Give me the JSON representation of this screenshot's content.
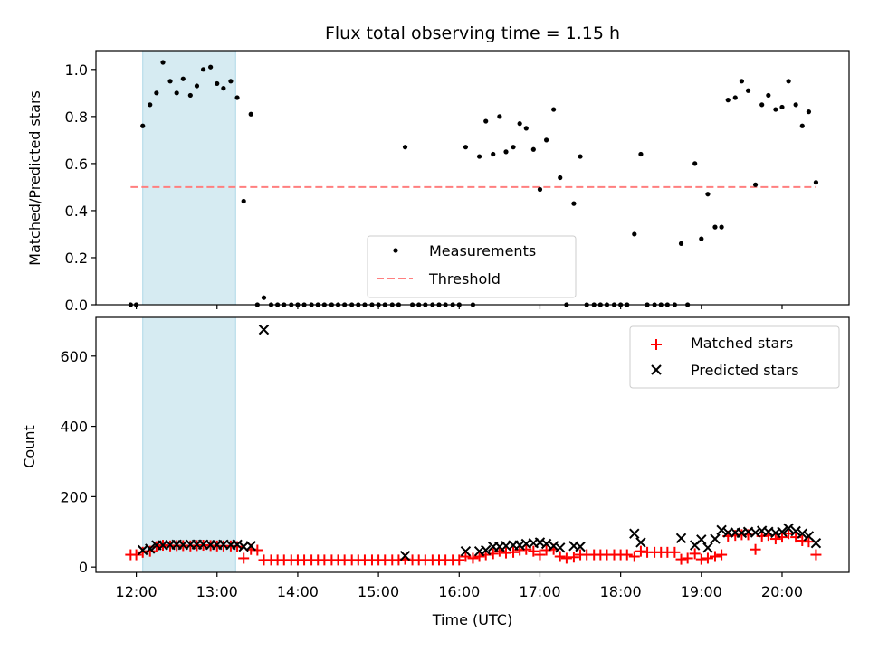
{
  "chart_data": [
    {
      "type": "scatter",
      "title": "Flux total observing time = 1.15 h",
      "ylabel": "Matched/Predicted stars",
      "xlim": [
        11.5,
        20.83
      ],
      "ylim": [
        0,
        1.08
      ],
      "yticks": [
        "0.0",
        "0.2",
        "0.4",
        "0.6",
        "0.8",
        "1.0"
      ],
      "ytick_values": [
        0,
        0.2,
        0.4,
        0.6,
        0.8,
        1.0
      ],
      "highlight_span": [
        12.08,
        13.23
      ],
      "threshold": {
        "name": "Threshold",
        "value": 0.5,
        "x_range": [
          11.93,
          20.42
        ],
        "color": "#ff7f7f"
      },
      "legend": {
        "placement": "lower-center",
        "entries": [
          "Measurements",
          "Threshold"
        ]
      },
      "series": [
        {
          "name": "Measurements",
          "color": "#000000",
          "points": [
            [
              11.93,
              0.0
            ],
            [
              12.0,
              0.0
            ],
            [
              12.08,
              0.76
            ],
            [
              12.17,
              0.85
            ],
            [
              12.25,
              0.9
            ],
            [
              12.33,
              1.03
            ],
            [
              12.42,
              0.95
            ],
            [
              12.5,
              0.9
            ],
            [
              12.58,
              0.96
            ],
            [
              12.67,
              0.89
            ],
            [
              12.75,
              0.93
            ],
            [
              12.83,
              1.0
            ],
            [
              12.92,
              1.01
            ],
            [
              13.0,
              0.94
            ],
            [
              13.08,
              0.92
            ],
            [
              13.17,
              0.95
            ],
            [
              13.25,
              0.88
            ],
            [
              13.33,
              0.44
            ],
            [
              13.42,
              0.81
            ],
            [
              13.5,
              0.0
            ],
            [
              13.58,
              0.03
            ],
            [
              13.67,
              0.0
            ],
            [
              13.75,
              0.0
            ],
            [
              13.83,
              0.0
            ],
            [
              13.92,
              0.0
            ],
            [
              14.0,
              0.0
            ],
            [
              14.08,
              0.0
            ],
            [
              14.17,
              0.0
            ],
            [
              14.25,
              0.0
            ],
            [
              14.33,
              0.0
            ],
            [
              14.42,
              0.0
            ],
            [
              14.5,
              0.0
            ],
            [
              14.58,
              0.0
            ],
            [
              14.67,
              0.0
            ],
            [
              14.75,
              0.0
            ],
            [
              14.83,
              0.0
            ],
            [
              14.92,
              0.0
            ],
            [
              15.0,
              0.0
            ],
            [
              15.08,
              0.0
            ],
            [
              15.17,
              0.0
            ],
            [
              15.25,
              0.0
            ],
            [
              15.33,
              0.67
            ],
            [
              15.42,
              0.0
            ],
            [
              15.5,
              0.0
            ],
            [
              15.58,
              0.0
            ],
            [
              15.67,
              0.0
            ],
            [
              15.75,
              0.0
            ],
            [
              15.83,
              0.0
            ],
            [
              15.92,
              0.0
            ],
            [
              16.0,
              0.0
            ],
            [
              16.08,
              0.67
            ],
            [
              16.17,
              0.0
            ],
            [
              16.25,
              0.63
            ],
            [
              16.33,
              0.78
            ],
            [
              16.42,
              0.64
            ],
            [
              16.5,
              0.8
            ],
            [
              16.58,
              0.65
            ],
            [
              16.67,
              0.67
            ],
            [
              16.75,
              0.77
            ],
            [
              16.83,
              0.75
            ],
            [
              16.92,
              0.66
            ],
            [
              17.0,
              0.49
            ],
            [
              17.08,
              0.7
            ],
            [
              17.17,
              0.83
            ],
            [
              17.25,
              0.54
            ],
            [
              17.33,
              0.0
            ],
            [
              17.42,
              0.43
            ],
            [
              17.5,
              0.63
            ],
            [
              17.58,
              0.0
            ],
            [
              17.67,
              0.0
            ],
            [
              17.75,
              0.0
            ],
            [
              17.83,
              0.0
            ],
            [
              17.92,
              0.0
            ],
            [
              18.0,
              0.0
            ],
            [
              18.08,
              0.0
            ],
            [
              18.17,
              0.3
            ],
            [
              18.25,
              0.64
            ],
            [
              18.33,
              0.0
            ],
            [
              18.42,
              0.0
            ],
            [
              18.5,
              0.0
            ],
            [
              18.58,
              0.0
            ],
            [
              18.67,
              0.0
            ],
            [
              18.75,
              0.26
            ],
            [
              18.83,
              0.0
            ],
            [
              18.92,
              0.6
            ],
            [
              19.0,
              0.28
            ],
            [
              19.08,
              0.47
            ],
            [
              19.17,
              0.33
            ],
            [
              19.25,
              0.33
            ],
            [
              19.33,
              0.87
            ],
            [
              19.42,
              0.88
            ],
            [
              19.5,
              0.95
            ],
            [
              19.58,
              0.91
            ],
            [
              19.67,
              0.51
            ],
            [
              19.75,
              0.85
            ],
            [
              19.83,
              0.89
            ],
            [
              19.92,
              0.83
            ],
            [
              20.0,
              0.84
            ],
            [
              20.08,
              0.95
            ],
            [
              20.17,
              0.85
            ],
            [
              20.25,
              0.76
            ],
            [
              20.33,
              0.82
            ],
            [
              20.42,
              0.52
            ]
          ]
        }
      ]
    },
    {
      "type": "scatter",
      "xlabel": "Time (UTC)",
      "ylabel": "Count",
      "xlim": [
        11.5,
        20.83
      ],
      "ylim": [
        -15,
        710
      ],
      "yticks": [
        "0",
        "200",
        "400",
        "600"
      ],
      "ytick_values": [
        0,
        200,
        400,
        600
      ],
      "xticks": [
        "12:00",
        "13:00",
        "14:00",
        "15:00",
        "16:00",
        "17:00",
        "18:00",
        "19:00",
        "20:00"
      ],
      "xtick_values": [
        12,
        13,
        14,
        15,
        16,
        17,
        18,
        19,
        20
      ],
      "highlight_span": [
        12.08,
        13.23
      ],
      "legend": {
        "placement": "top-right",
        "entries": [
          "Matched stars",
          "Predicted stars"
        ]
      },
      "series": [
        {
          "name": "Matched stars",
          "marker": "+",
          "color": "#ff0000",
          "points": [
            [
              11.93,
              35
            ],
            [
              12.0,
              35
            ],
            [
              12.08,
              42
            ],
            [
              12.17,
              45
            ],
            [
              12.25,
              58
            ],
            [
              12.33,
              62
            ],
            [
              12.42,
              60
            ],
            [
              12.5,
              61
            ],
            [
              12.58,
              61
            ],
            [
              12.67,
              60
            ],
            [
              12.75,
              61
            ],
            [
              12.83,
              62
            ],
            [
              12.92,
              61
            ],
            [
              13.0,
              60
            ],
            [
              13.08,
              60
            ],
            [
              13.17,
              60
            ],
            [
              13.25,
              58
            ],
            [
              13.33,
              25
            ],
            [
              13.42,
              50
            ],
            [
              13.5,
              48
            ],
            [
              13.58,
              20
            ],
            [
              13.67,
              20
            ],
            [
              13.75,
              20
            ],
            [
              13.83,
              20
            ],
            [
              13.92,
              20
            ],
            [
              14.0,
              20
            ],
            [
              14.08,
              20
            ],
            [
              14.17,
              20
            ],
            [
              14.25,
              20
            ],
            [
              14.33,
              20
            ],
            [
              14.42,
              20
            ],
            [
              14.5,
              20
            ],
            [
              14.58,
              20
            ],
            [
              14.67,
              20
            ],
            [
              14.75,
              20
            ],
            [
              14.83,
              20
            ],
            [
              14.92,
              20
            ],
            [
              15.0,
              20
            ],
            [
              15.08,
              20
            ],
            [
              15.17,
              20
            ],
            [
              15.25,
              20
            ],
            [
              15.33,
              22
            ],
            [
              15.42,
              20
            ],
            [
              15.5,
              20
            ],
            [
              15.58,
              20
            ],
            [
              15.67,
              20
            ],
            [
              15.75,
              20
            ],
            [
              15.83,
              20
            ],
            [
              15.92,
              20
            ],
            [
              16.0,
              20
            ],
            [
              16.08,
              30
            ],
            [
              16.17,
              25
            ],
            [
              16.25,
              30
            ],
            [
              16.33,
              35
            ],
            [
              16.42,
              38
            ],
            [
              16.5,
              45
            ],
            [
              16.58,
              40
            ],
            [
              16.67,
              42
            ],
            [
              16.75,
              48
            ],
            [
              16.83,
              50
            ],
            [
              16.92,
              45
            ],
            [
              17.0,
              35
            ],
            [
              17.08,
              48
            ],
            [
              17.17,
              50
            ],
            [
              17.25,
              30
            ],
            [
              17.33,
              25
            ],
            [
              17.42,
              28
            ],
            [
              17.5,
              35
            ],
            [
              17.58,
              35
            ],
            [
              17.67,
              35
            ],
            [
              17.75,
              35
            ],
            [
              17.83,
              35
            ],
            [
              17.92,
              35
            ],
            [
              18.0,
              35
            ],
            [
              18.08,
              35
            ],
            [
              18.17,
              30
            ],
            [
              18.25,
              45
            ],
            [
              18.33,
              42
            ],
            [
              18.42,
              42
            ],
            [
              18.5,
              42
            ],
            [
              18.58,
              42
            ],
            [
              18.67,
              42
            ],
            [
              18.75,
              22
            ],
            [
              18.83,
              25
            ],
            [
              18.92,
              38
            ],
            [
              19.0,
              22
            ],
            [
              19.08,
              25
            ],
            [
              19.17,
              30
            ],
            [
              19.25,
              35
            ],
            [
              19.33,
              88
            ],
            [
              19.42,
              90
            ],
            [
              19.5,
              92
            ],
            [
              19.58,
              92
            ],
            [
              19.67,
              50
            ],
            [
              19.75,
              88
            ],
            [
              19.83,
              90
            ],
            [
              19.92,
              80
            ],
            [
              20.0,
              85
            ],
            [
              20.08,
              95
            ],
            [
              20.17,
              85
            ],
            [
              20.25,
              75
            ],
            [
              20.33,
              72
            ],
            [
              20.42,
              35
            ]
          ]
        },
        {
          "name": "Predicted stars",
          "marker": "x",
          "color": "#000000",
          "points": [
            [
              12.08,
              48
            ],
            [
              12.17,
              52
            ],
            [
              12.25,
              62
            ],
            [
              12.33,
              62
            ],
            [
              12.42,
              63
            ],
            [
              12.5,
              64
            ],
            [
              12.58,
              63
            ],
            [
              12.67,
              64
            ],
            [
              12.75,
              64
            ],
            [
              12.83,
              64
            ],
            [
              12.92,
              63
            ],
            [
              13.0,
              63
            ],
            [
              13.08,
              64
            ],
            [
              13.17,
              63
            ],
            [
              13.25,
              64
            ],
            [
              13.33,
              58
            ],
            [
              13.42,
              60
            ],
            [
              13.58,
              675
            ],
            [
              15.33,
              32
            ],
            [
              16.08,
              45
            ],
            [
              16.25,
              45
            ],
            [
              16.33,
              48
            ],
            [
              16.42,
              58
            ],
            [
              16.5,
              58
            ],
            [
              16.58,
              60
            ],
            [
              16.67,
              62
            ],
            [
              16.75,
              62
            ],
            [
              16.83,
              66
            ],
            [
              16.92,
              68
            ],
            [
              17.0,
              70
            ],
            [
              17.08,
              66
            ],
            [
              17.17,
              60
            ],
            [
              17.25,
              55
            ],
            [
              17.42,
              60
            ],
            [
              17.5,
              58
            ],
            [
              18.17,
              95
            ],
            [
              18.25,
              70
            ],
            [
              18.75,
              82
            ],
            [
              18.92,
              62
            ],
            [
              19.0,
              78
            ],
            [
              19.08,
              55
            ],
            [
              19.17,
              80
            ],
            [
              19.25,
              105
            ],
            [
              19.33,
              98
            ],
            [
              19.42,
              98
            ],
            [
              19.5,
              97
            ],
            [
              19.58,
              100
            ],
            [
              19.67,
              98
            ],
            [
              19.75,
              103
            ],
            [
              19.83,
              100
            ],
            [
              19.92,
              97
            ],
            [
              20.0,
              100
            ],
            [
              20.08,
              110
            ],
            [
              20.17,
              102
            ],
            [
              20.25,
              95
            ],
            [
              20.33,
              88
            ],
            [
              20.42,
              68
            ]
          ]
        }
      ]
    }
  ]
}
